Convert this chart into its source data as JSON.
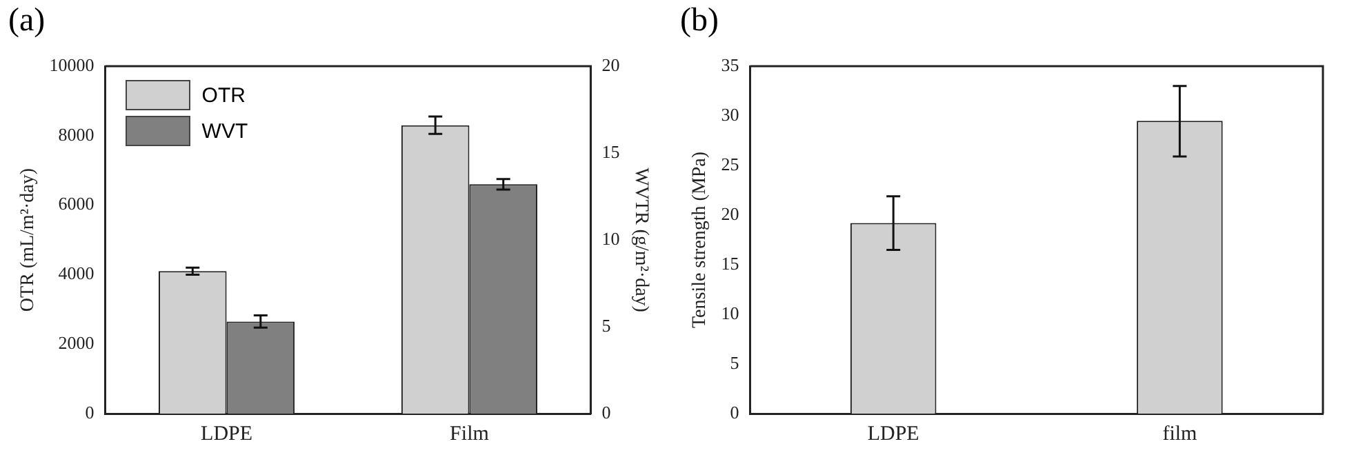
{
  "chart_data": [
    {
      "type": "bar",
      "annotations": [
        "(a)"
      ],
      "ylabel": "OTR (mL/m²·day)",
      "y2label": "WVTR (g/m²·day)",
      "categories": [
        "LDPE",
        "Film"
      ],
      "legend": "top left",
      "grid": false,
      "series": [
        {
          "name": "OTR",
          "color": "#d0d0d0",
          "values": [
            4100,
            8300
          ],
          "errors": [
            100,
            250
          ]
        },
        {
          "name": "WVT",
          "color": "#808080",
          "values": [
            5.3,
            13.2
          ],
          "errors": [
            0.35,
            0.3
          ],
          "axis": "y2"
        }
      ],
      "ylim": [
        0,
        10000
      ],
      "yticks": [
        0,
        2000,
        4000,
        6000,
        8000,
        10000
      ],
      "y2lim": [
        0,
        20
      ],
      "y2ticks": [
        0,
        5,
        10,
        15,
        20
      ]
    },
    {
      "type": "bar",
      "annotations": [
        "(b)"
      ],
      "ylabel": "Tensile strength (MPa)",
      "categories": [
        "LDPE",
        "film"
      ],
      "grid": false,
      "legend": false,
      "series": [
        {
          "color": "#d0d0d0",
          "values": [
            19.2,
            29.5
          ],
          "errors": [
            [
              16.5,
              21.9
            ],
            [
              25.9,
              33.0
            ]
          ]
        }
      ],
      "ylim": [
        0,
        35
      ],
      "yticks": [
        0,
        5,
        10,
        15,
        20,
        25,
        30,
        35
      ]
    }
  ]
}
